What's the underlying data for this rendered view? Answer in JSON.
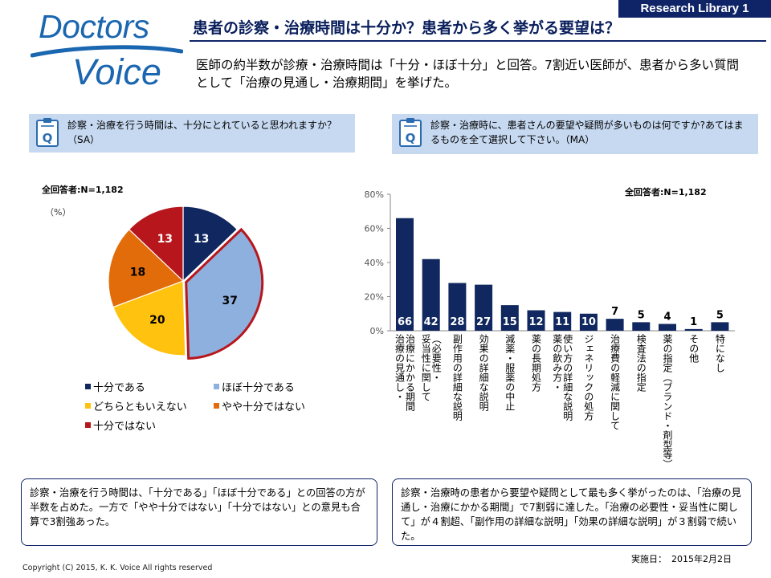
{
  "header": {
    "logo_line1": "Doctors",
    "logo_line2": "Voice",
    "badge": "Research Library 1",
    "title": "患者の診察・治療時間は十分か？患者から多く挙がる要望は？",
    "lead": "医師の約半数が診療・治療時間は「十分・ほぼ十分」と回答。7割近い医師が、患者から多い質問として「治療の見通し・治療期間」を挙げた。"
  },
  "question_left": "診察・治療を行う時間は、十分にとれていると思われますか？（SA）",
  "question_right": "診察・治療時に、患者さんの要望や疑問が多いものは何ですか?あてはまるものを全て選択して下さい。（MA）",
  "colors": {
    "navy": "#10275f",
    "light_blue": "#8eb0de",
    "yellow": "#ffc20e",
    "orange": "#e36c0a",
    "red": "#b7161c",
    "question_bg": "#c6d9f1"
  },
  "chart_data": [
    {
      "type": "pie",
      "respondents": "全回答者:N=1,182",
      "unit": "（%）",
      "slices": [
        {
          "label": "十分である",
          "value": 13,
          "color": "#10275f"
        },
        {
          "label": "ほぼ十分である",
          "value": 37,
          "color": "#8eb0de"
        },
        {
          "label": "どちらともいえない",
          "value": 20,
          "color": "#ffc20e"
        },
        {
          "label": "やや十分ではない",
          "value": 18,
          "color": "#e36c0a"
        },
        {
          "label": "十分ではない",
          "value": 13,
          "color": "#b7161c"
        }
      ]
    },
    {
      "type": "bar",
      "respondents": "全回答者:N=1,182",
      "ylim": [
        0,
        80
      ],
      "yticks": [
        "0%",
        "20%",
        "40%",
        "60%",
        "80%"
      ],
      "grid": false,
      "categories": [
        "治療の見通し・治療にかかる期間",
        "妥当性に関して（必要性・",
        "副作用の詳細な説明",
        "効果の詳細な説明",
        "減薬・服薬の中止",
        "薬の長期処方",
        "薬の飲み方・使い方の詳細な説明",
        "ジェネリックの処方",
        "治療費の軽減に関して",
        "検査法の指定",
        "薬の指定（ブランド・剤型等）",
        "その他",
        "特になし"
      ],
      "columns": [
        [
          "治療の見通し・",
          "治療にかかる期間"
        ],
        [
          "妥当性に関して",
          "（必要性・"
        ],
        [
          "副作用の詳細な説明"
        ],
        [
          "効果の詳細な説明"
        ],
        [
          "減薬・服薬の中止"
        ],
        [
          "薬の長期処方"
        ],
        [
          "薬の飲み方・",
          "使い方の詳細な説明"
        ],
        [
          "ジェネリックの処方"
        ],
        [
          "治療費の軽減に関して"
        ],
        [
          "検査法の指定"
        ],
        [
          "薬の指定（ブランド・剤型等）"
        ],
        [
          "その他"
        ],
        [
          "特になし"
        ]
      ],
      "values": [
        66,
        42,
        28,
        27,
        15,
        12,
        11,
        10,
        7,
        5,
        4,
        1,
        5
      ],
      "color": "#10275f"
    }
  ],
  "notes": {
    "left": "診察・治療を行う時間は、「十分である」「ほぼ十分である」との回答の方が半数を占めた。一方で「やや十分ではない」「十分ではない」との意見も合算で3割強あった。",
    "right": "診察・治療時の患者から要望や疑問として最も多く挙がったのは、「治療の見通し・治療にかかる期間」で7割弱に達した。「治療の必要性・妥当性に関して」が４割超、「副作用の詳細な説明」「効果の詳細な説明」が３割弱で続いた。"
  },
  "footer": {
    "copyright": "Copyright (C) 2015, K. K. Voice All rights reserved",
    "date_label": "実施日：",
    "date_value": "2015年2月2日"
  }
}
